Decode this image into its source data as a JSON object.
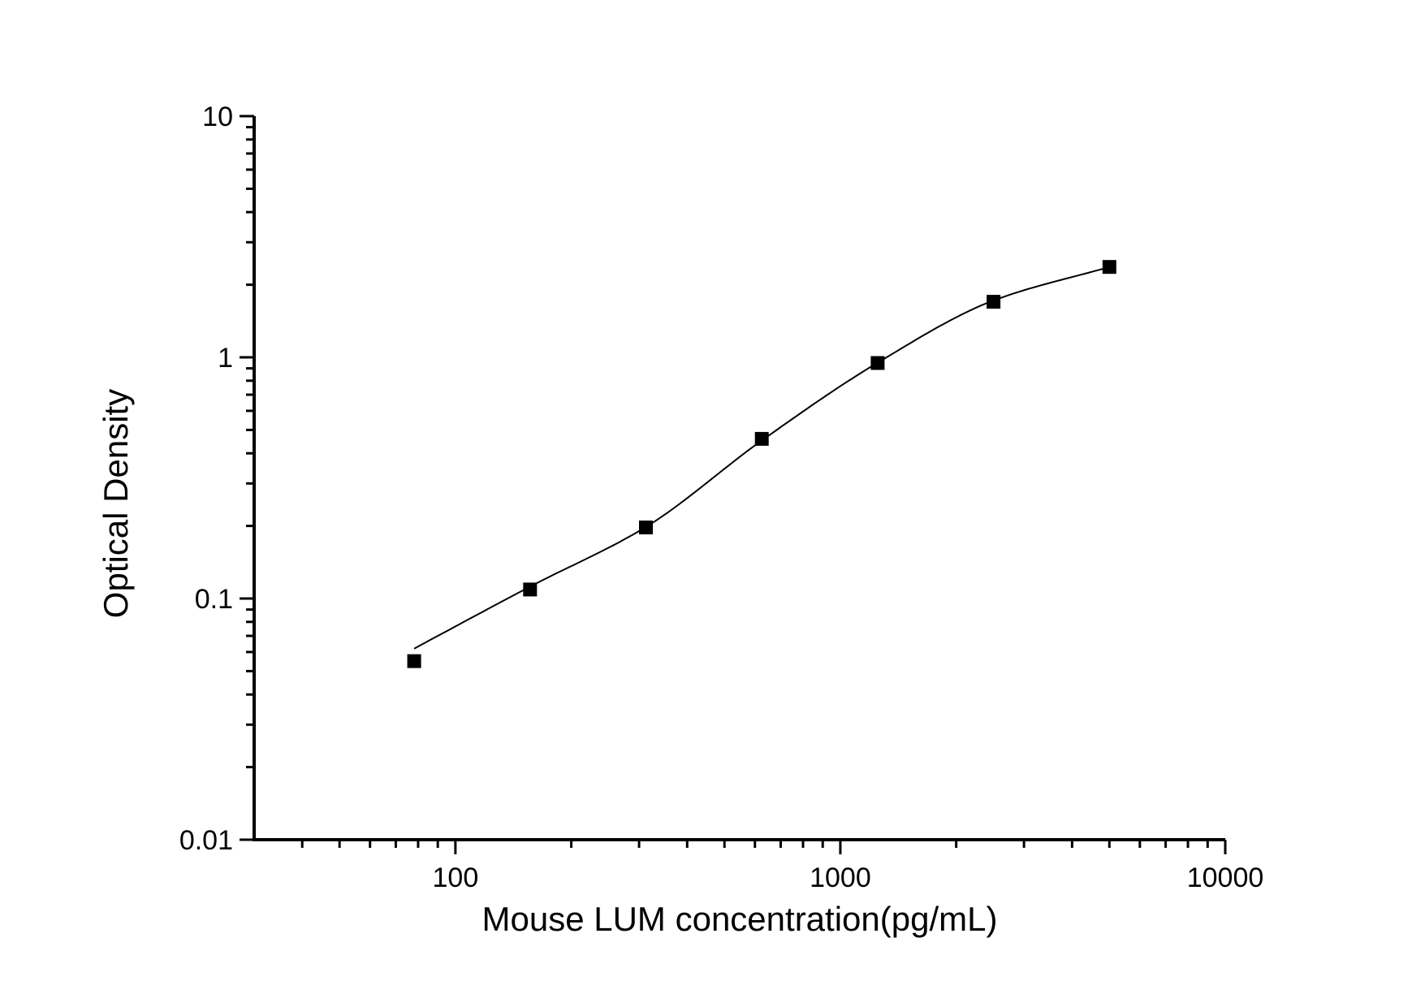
{
  "page": {
    "background_color": "#ffffff",
    "foreground_color": "#000000"
  },
  "chart_data": {
    "type": "scatter",
    "title": "",
    "xlabel": "Mouse LUM concentration(pg/mL)",
    "ylabel": "Optical Density",
    "x_scale": "log",
    "y_scale": "log",
    "xlim": [
      30,
      10000
    ],
    "ylim": [
      0.01,
      10
    ],
    "x_major_ticks": [
      100,
      1000,
      10000
    ],
    "x_major_tick_labels": [
      "100",
      "1000",
      "10000"
    ],
    "y_major_ticks": [
      10,
      1,
      0.1,
      0.01
    ],
    "y_major_tick_labels": [
      "10",
      "1",
      "0.1",
      "0.01"
    ],
    "minor_ticks": "log-decades",
    "grid": false,
    "legend": "none",
    "axis_color": "#000000",
    "series": [
      {
        "name": "standard-points",
        "kind": "scatter",
        "marker": "filled-square",
        "color": "#000000",
        "points": [
          {
            "x": 78.125,
            "y": 0.055
          },
          {
            "x": 156.25,
            "y": 0.109
          },
          {
            "x": 312.5,
            "y": 0.197
          },
          {
            "x": 625,
            "y": 0.459
          },
          {
            "x": 1250,
            "y": 0.947
          },
          {
            "x": 2500,
            "y": 1.7
          },
          {
            "x": 5000,
            "y": 2.37
          }
        ]
      },
      {
        "name": "fitted-curve",
        "kind": "line",
        "color": "#000000",
        "points": [
          {
            "x": 78.125,
            "y": 0.062
          },
          {
            "x": 156.25,
            "y": 0.112
          },
          {
            "x": 312.5,
            "y": 0.198
          },
          {
            "x": 625,
            "y": 0.452
          },
          {
            "x": 1250,
            "y": 0.95
          },
          {
            "x": 2500,
            "y": 1.72
          },
          {
            "x": 5000,
            "y": 2.37
          }
        ]
      }
    ]
  }
}
